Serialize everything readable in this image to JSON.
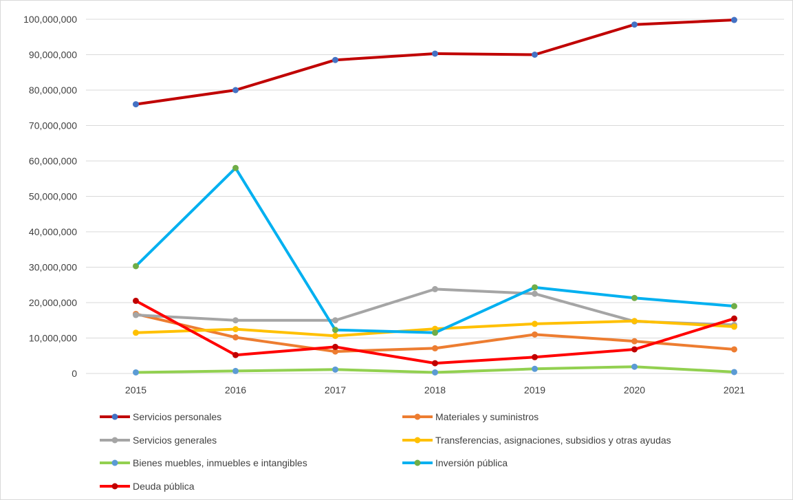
{
  "chart_data": {
    "type": "line",
    "title": "",
    "xlabel": "",
    "ylabel": "",
    "categories": [
      "2015",
      "2016",
      "2017",
      "2018",
      "2019",
      "2020",
      "2021"
    ],
    "ylim": [
      0,
      100000000
    ],
    "yticks": [
      0,
      10000000,
      20000000,
      30000000,
      40000000,
      50000000,
      60000000,
      70000000,
      80000000,
      90000000,
      100000000
    ],
    "ytick_labels": [
      "0",
      "10,000,000",
      "20,000,000",
      "30,000,000",
      "40,000,000",
      "50,000,000",
      "60,000,000",
      "70,000,000",
      "80,000,000",
      "90,000,000",
      "100,000,000"
    ],
    "grid": true,
    "legend_position": "bottom",
    "series": [
      {
        "name": "Servicios personales",
        "color": "#c00000",
        "marker_color": "#4472c4",
        "values": [
          76000000,
          80000000,
          88500000,
          90300000,
          90000000,
          98500000,
          99800000
        ]
      },
      {
        "name": "Materiales y suministros",
        "color": "#ed7d31",
        "marker_color": "#ed7d31",
        "values": [
          16800000,
          10200000,
          6200000,
          7100000,
          11000000,
          9100000,
          6800000
        ]
      },
      {
        "name": "Servicios generales",
        "color": "#a5a5a5",
        "marker_color": "#a5a5a5",
        "values": [
          16500000,
          15000000,
          15000000,
          23800000,
          22500000,
          14700000,
          13700000
        ]
      },
      {
        "name": "Transferencias, asignaciones, subsidios y otras ayudas",
        "color": "#ffc000",
        "marker_color": "#ffc000",
        "values": [
          11500000,
          12500000,
          10600000,
          12600000,
          14000000,
          14800000,
          13200000
        ]
      },
      {
        "name": "Bienes muebles, inmuebles e intangibles",
        "color": "#92d050",
        "marker_color": "#5b9bd5",
        "values": [
          300000,
          700000,
          1100000,
          300000,
          1300000,
          1900000,
          400000
        ]
      },
      {
        "name": "Inversión pública",
        "color": "#00b0f0",
        "marker_color": "#70ad47",
        "values": [
          30300000,
          58000000,
          12300000,
          11500000,
          24300000,
          21300000,
          19000000
        ]
      },
      {
        "name": "Deuda pública",
        "color": "#ff0000",
        "marker_color": "#c00000",
        "values": [
          20500000,
          5200000,
          7500000,
          2900000,
          4600000,
          6800000,
          15500000
        ]
      }
    ]
  }
}
